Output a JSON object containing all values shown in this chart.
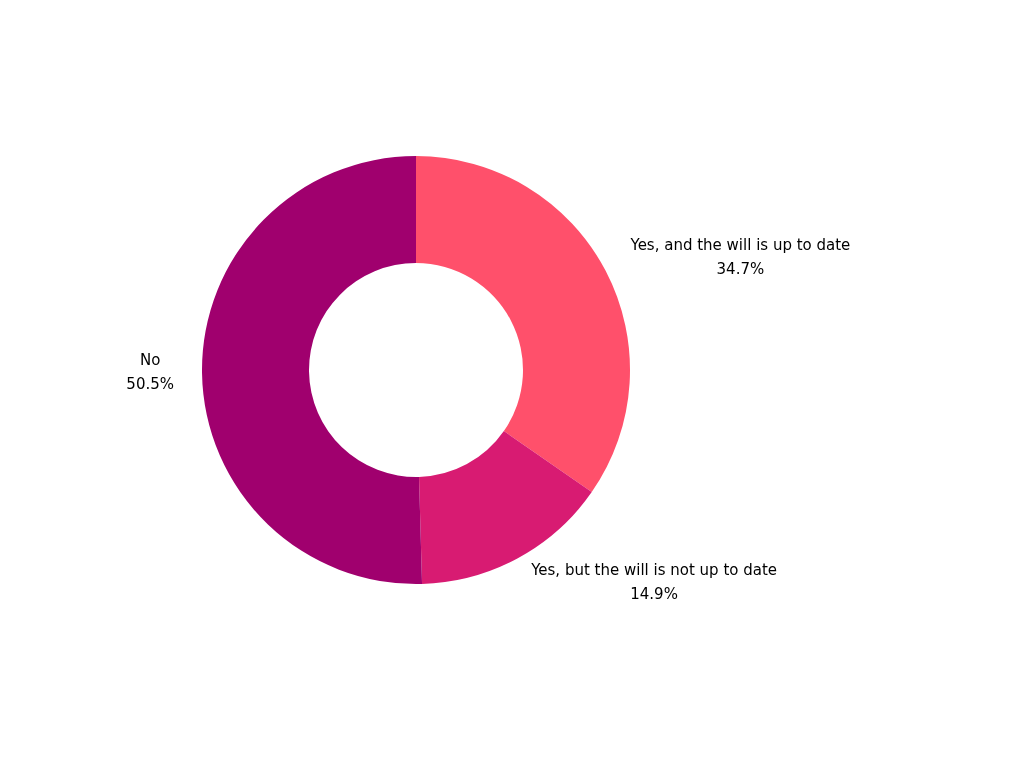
{
  "chart_data": {
    "type": "donut",
    "categories": [
      "Yes, and the will is up to date",
      "Yes, but the will is not up to date",
      "No"
    ],
    "values": [
      34.7,
      14.9,
      50.5
    ],
    "value_labels": [
      "34.7%",
      "14.9%",
      "50.5%"
    ],
    "colors": [
      "#ff506b",
      "#d81b72",
      "#a0006e"
    ],
    "legend": false
  }
}
